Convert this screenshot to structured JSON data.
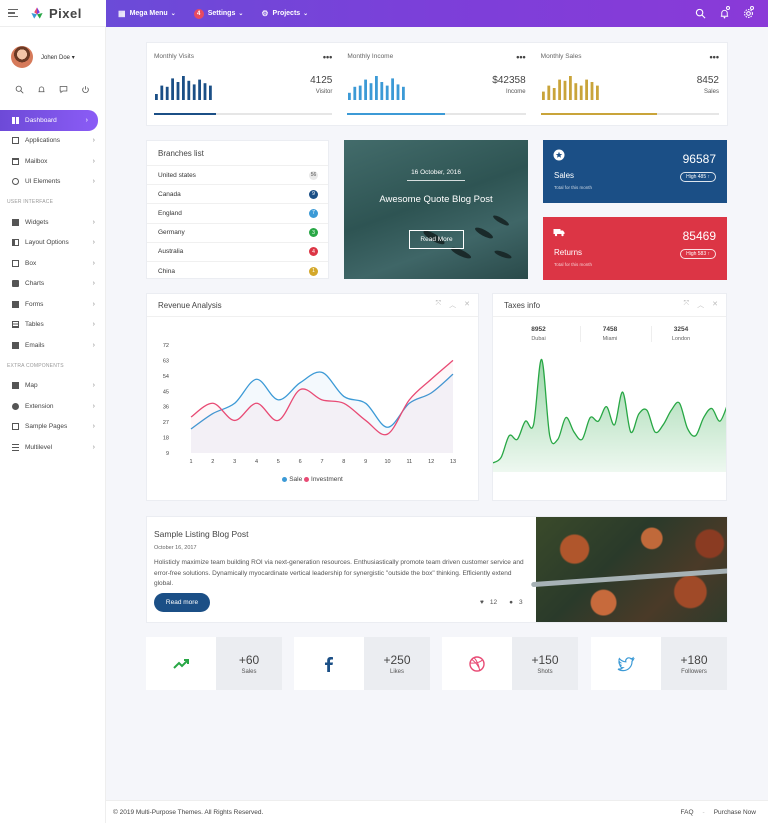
{
  "brand": {
    "name": "Pixel"
  },
  "topnav": {
    "items": [
      {
        "label": "Mega Menu"
      },
      {
        "label": "Settings",
        "badge": "4"
      },
      {
        "label": "Projects"
      }
    ]
  },
  "profile": {
    "name": "Johen Doe"
  },
  "sidebar": {
    "main": [
      {
        "label": "Dashboard",
        "icon": "dashboard-icon",
        "active": true
      },
      {
        "label": "Applications",
        "icon": "apps-icon"
      },
      {
        "label": "Mailbox",
        "icon": "mail-icon"
      },
      {
        "label": "UI Elements",
        "icon": "ui-icon"
      }
    ],
    "section_ui": "USER INTERFACE",
    "ui": [
      {
        "label": "Widgets"
      },
      {
        "label": "Layout Options"
      },
      {
        "label": "Box"
      },
      {
        "label": "Charts"
      },
      {
        "label": "Forms"
      },
      {
        "label": "Tables"
      },
      {
        "label": "Emails"
      }
    ],
    "section_extra": "EXTRA COMPONENTS",
    "extra": [
      {
        "label": "Map"
      },
      {
        "label": "Extension"
      },
      {
        "label": "Sample Pages"
      },
      {
        "label": "Multilevel"
      }
    ]
  },
  "stats": [
    {
      "title": "Monthly Visits",
      "value": "4125",
      "label": "Visitor",
      "color": "#1b4f86",
      "progress": 0.35
    },
    {
      "title": "Monthly Income",
      "value": "$42358",
      "label": "Income",
      "color": "#3c9ad6",
      "progress": 0.55
    },
    {
      "title": "Monthly Sales",
      "value": "8452",
      "label": "Sales",
      "color": "#c9a43a",
      "progress": 0.65
    }
  ],
  "branches": {
    "title": "Branches list",
    "rows": [
      {
        "name": "United states",
        "count": "56",
        "color": "#e8e8e8",
        "text": "#555"
      },
      {
        "name": "Canada",
        "count": "9",
        "color": "#1b4f86",
        "text": "#fff"
      },
      {
        "name": "England",
        "count": "7",
        "color": "#3c9ad6",
        "text": "#fff"
      },
      {
        "name": "Germany",
        "count": "3",
        "color": "#28a745",
        "text": "#fff"
      },
      {
        "name": "Australia",
        "count": "4",
        "color": "#dc3545",
        "text": "#fff"
      },
      {
        "name": "China",
        "count": "1",
        "color": "#d4a82a",
        "text": "#fff"
      }
    ]
  },
  "hero": {
    "date": "16 October, 2016",
    "title": "Awesome Quote Blog Post",
    "button": "Read More"
  },
  "sales_card": {
    "value": "96587",
    "label": "Sales",
    "sub": "Total for this month",
    "pill": "High 485"
  },
  "returns_card": {
    "value": "85469",
    "label": "Returns",
    "sub": "Total for this month",
    "pill": "High 583"
  },
  "revenue": {
    "title": "Revenue Analysis"
  },
  "taxes": {
    "title": "Taxes info",
    "items": [
      {
        "value": "8952",
        "city": "Dubai"
      },
      {
        "value": "7458",
        "city": "Miami"
      },
      {
        "value": "3254",
        "city": "London"
      }
    ]
  },
  "listing": {
    "title": "Sample Listing Blog Post",
    "date": "October 16, 2017",
    "text": "Holisticly maximize team building ROI via next-generation resources. Enthusiastically promote team driven customer service and error-free solutions. Dynamically myocardinate vertical leadership for synergistic \"outside the box\" thinking. Efficiently extend global.",
    "button": "Read more",
    "likes": "12",
    "comments": "3"
  },
  "social": [
    {
      "value": "+60",
      "label": "Sales",
      "icon": "trend-up-icon"
    },
    {
      "value": "+250",
      "label": "Likes",
      "icon": "facebook-icon"
    },
    {
      "value": "+150",
      "label": "Shots",
      "icon": "dribbble-icon"
    },
    {
      "value": "+180",
      "label": "Followers",
      "icon": "twitter-icon"
    }
  ],
  "footer": {
    "copyright": "© 2019 Multi-Purpose Themes. All Rights Reserved.",
    "faq": "FAQ",
    "purchase": "Purchase Now"
  },
  "chart_data": [
    {
      "type": "line",
      "title": "Revenue Analysis",
      "x": [
        1,
        2,
        3,
        4,
        5,
        6,
        7,
        8,
        9,
        10,
        11,
        12,
        13
      ],
      "ylim": [
        9,
        72
      ],
      "yticks": [
        9,
        18,
        27,
        36,
        45,
        54,
        63,
        72
      ],
      "series": [
        {
          "name": "Sale",
          "color": "#3c9ad6",
          "values": [
            23,
            32,
            38,
            52,
            40,
            50,
            56,
            42,
            38,
            24,
            38,
            44,
            55
          ]
        },
        {
          "name": "Investment",
          "color": "#e84a74",
          "values": [
            30,
            38,
            28,
            38,
            28,
            46,
            40,
            38,
            28,
            20,
            40,
            52,
            63
          ]
        }
      ],
      "legend": "bottom"
    },
    {
      "type": "area",
      "title": "Taxes info",
      "color": "#28a745",
      "values": [
        5,
        8,
        20,
        18,
        28,
        26,
        62,
        20,
        18,
        30,
        22,
        18,
        30,
        28,
        36,
        26,
        44,
        22,
        32,
        34,
        22,
        26,
        34,
        38,
        24,
        20,
        30,
        35,
        28,
        38
      ]
    }
  ]
}
